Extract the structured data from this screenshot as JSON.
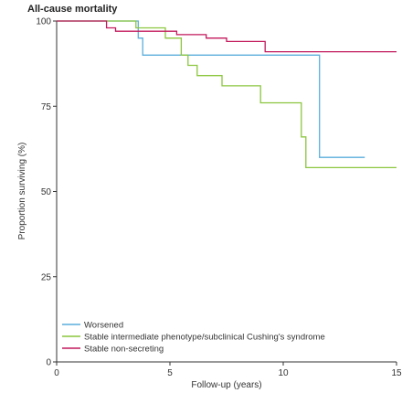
{
  "chart_data": {
    "type": "line",
    "title": "All-cause mortality",
    "xlabel": "Follow-up (years)",
    "ylabel": "Proportion surviving (%)",
    "xlim": [
      0,
      15
    ],
    "ylim": [
      0,
      100
    ],
    "xticks": [
      0,
      5,
      10,
      15
    ],
    "yticks": [
      0,
      25,
      50,
      75,
      100
    ],
    "grid": false,
    "legend_position": "bottom-left",
    "step": true,
    "series": [
      {
        "name": "Worsened",
        "color": "#5aaedc",
        "x": [
          0,
          3.6,
          3.6,
          3.8,
          3.8,
          11.6,
          11.6,
          13.6
        ],
        "y": [
          100,
          100,
          95,
          95,
          90,
          90,
          60,
          60
        ]
      },
      {
        "name": "Stable intermediate phenotype/subclinical Cushing's syndrome",
        "color": "#8cc63f",
        "x": [
          0,
          3.5,
          3.5,
          4.8,
          4.8,
          5.5,
          5.5,
          5.8,
          5.8,
          6.2,
          6.2,
          7.3,
          7.3,
          9.0,
          9.0,
          10.8,
          10.8,
          11.0,
          11.0,
          15
        ],
        "y": [
          100,
          100,
          98,
          98,
          95,
          95,
          90,
          90,
          87,
          87,
          84,
          84,
          81,
          81,
          76,
          76,
          66,
          66,
          57,
          57
        ]
      },
      {
        "name": "Stable non-secreting",
        "color": "#c2185b",
        "x": [
          0,
          2.2,
          2.2,
          2.6,
          2.6,
          5.3,
          5.3,
          6.6,
          6.6,
          7.5,
          7.5,
          9.2,
          9.2,
          15
        ],
        "y": [
          100,
          100,
          98,
          98,
          97,
          97,
          96,
          96,
          95,
          95,
          94,
          94,
          91,
          91
        ]
      }
    ]
  }
}
